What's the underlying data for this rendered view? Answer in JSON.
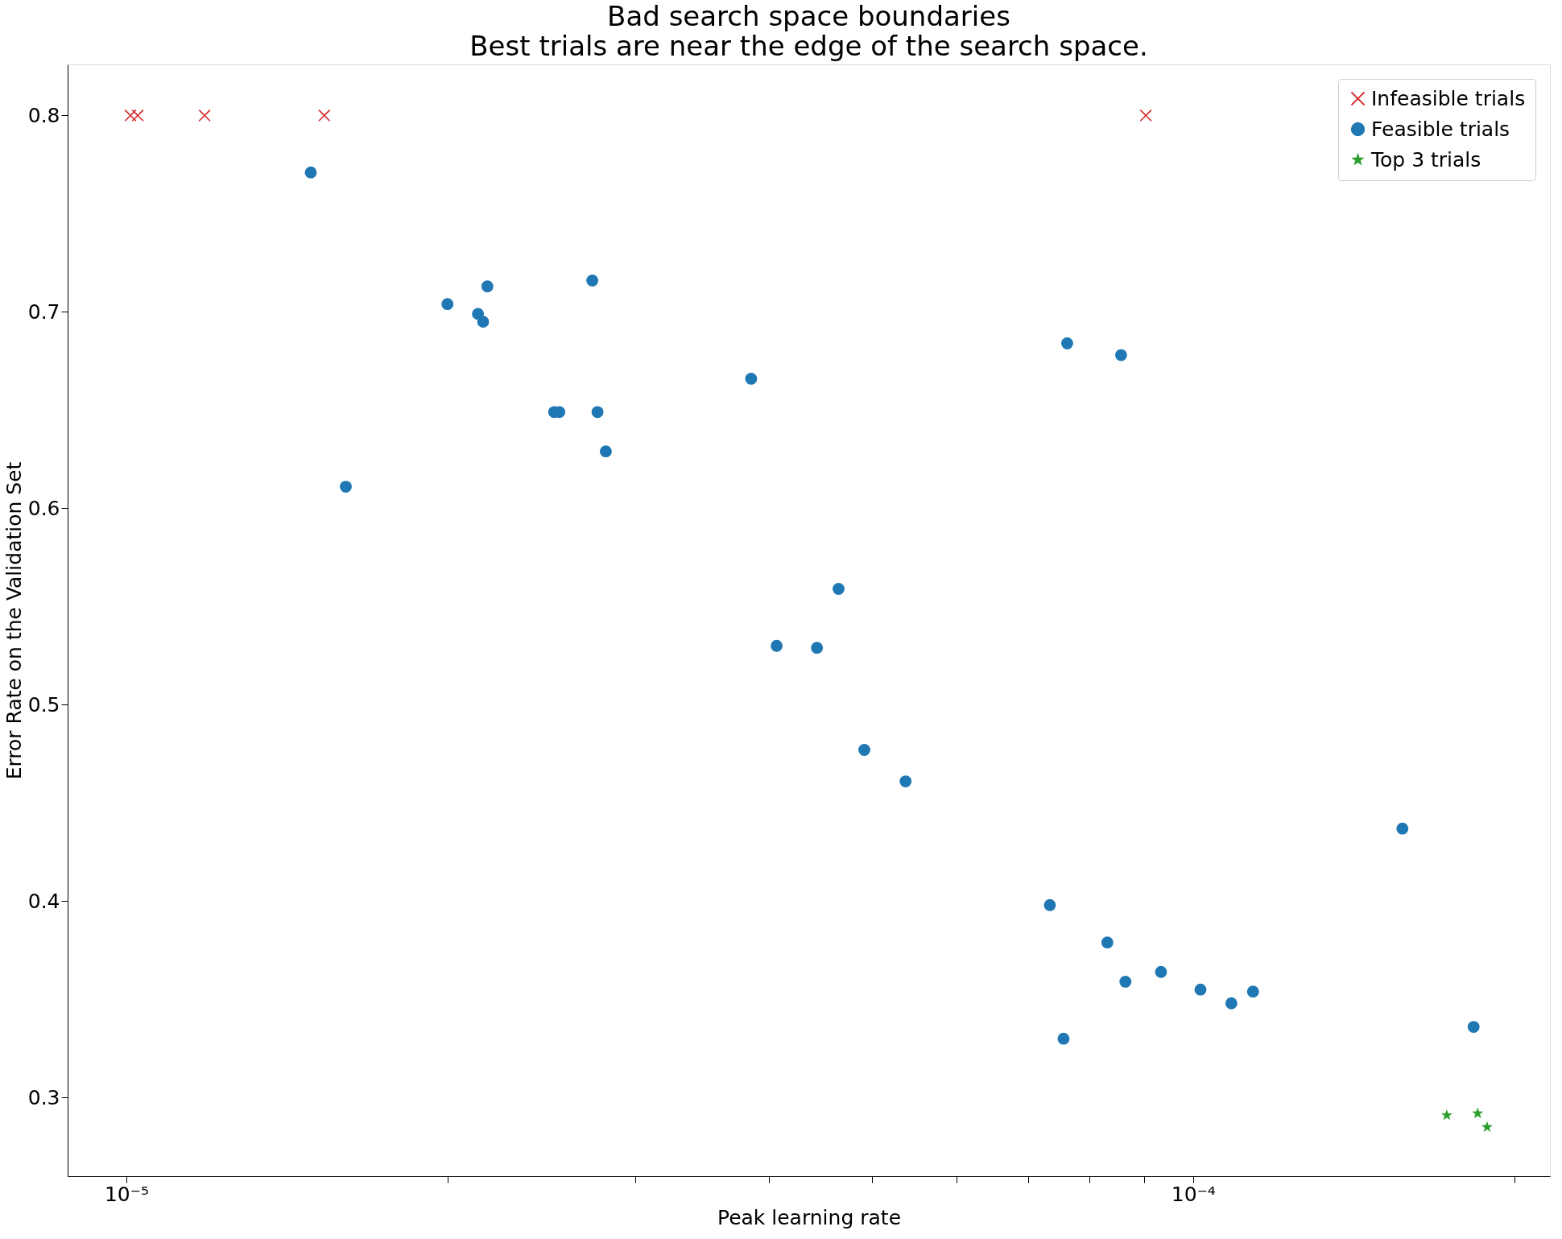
{
  "chart_data": {
    "type": "scatter",
    "title": "Bad search space boundaries",
    "subtitle": "Best trials are near the edge of the search space.",
    "xlabel": "Peak learning rate",
    "ylabel": "Error Rate on the Validation Set",
    "log": "x",
    "grid": false,
    "legend": "top right",
    "xlim": [
      8.81e-06,
      0.000216
    ],
    "xticks": [
      {
        "value": 1e-05,
        "label": "10⁻⁵"
      },
      {
        "value": 2e-05,
        "label": null
      },
      {
        "value": 3e-05,
        "label": null
      },
      {
        "value": 4e-05,
        "label": null
      },
      {
        "value": 5e-05,
        "label": null
      },
      {
        "value": 6e-05,
        "label": null
      },
      {
        "value": 7e-05,
        "label": null
      },
      {
        "value": 8e-05,
        "label": null
      },
      {
        "value": 9e-05,
        "label": null
      },
      {
        "value": 0.0001,
        "label": "10⁻⁴"
      },
      {
        "value": 0.0002,
        "label": null
      }
    ],
    "ylim": [
      0.26,
      0.826
    ],
    "yticks": [
      0.3,
      0.4,
      0.5,
      0.6,
      0.7,
      0.8
    ],
    "series": [
      {
        "name": "Infeasible trials",
        "color": "#d62728",
        "marker": "cross",
        "x": [
          1.009e-05,
          1.025e-05,
          1.184e-05,
          1.533e-05,
          9.03e-05
        ],
        "values": [
          0.8,
          0.8,
          0.8,
          0.8,
          0.8
        ]
      },
      {
        "name": "Feasible trials",
        "color": "#1f77b4",
        "marker": "circle",
        "x": [
          1.489e-05,
          1.606e-05,
          2e-05,
          2.136e-05,
          2.16e-05,
          2.18e-05,
          2.518e-05,
          2.546e-05,
          2.734e-05,
          2.765e-05,
          2.815e-05,
          3.852e-05,
          4.07e-05,
          4.44e-05,
          4.652e-05,
          4.918e-05,
          5.376e-05,
          7.34e-05,
          7.56e-05,
          7.62e-05,
          8.31e-05,
          8.56e-05,
          8.64e-05,
          9.33e-05,
          0.0001016,
          0.0001086,
          0.0001138,
          0.0001571,
          0.0001832
        ],
        "values": [
          0.771,
          0.611,
          0.704,
          0.699,
          0.695,
          0.713,
          0.649,
          0.649,
          0.716,
          0.649,
          0.629,
          0.666,
          0.53,
          0.529,
          0.559,
          0.477,
          0.461,
          0.398,
          0.33,
          0.684,
          0.379,
          0.678,
          0.359,
          0.364,
          0.355,
          0.348,
          0.354,
          0.437,
          0.336
        ]
      },
      {
        "name": "Top 3 trials",
        "color": "#2ca02c",
        "marker": "star",
        "x": [
          0.0001729,
          0.0001848,
          0.0001886
        ],
        "values": [
          0.291,
          0.292,
          0.285
        ]
      }
    ]
  }
}
